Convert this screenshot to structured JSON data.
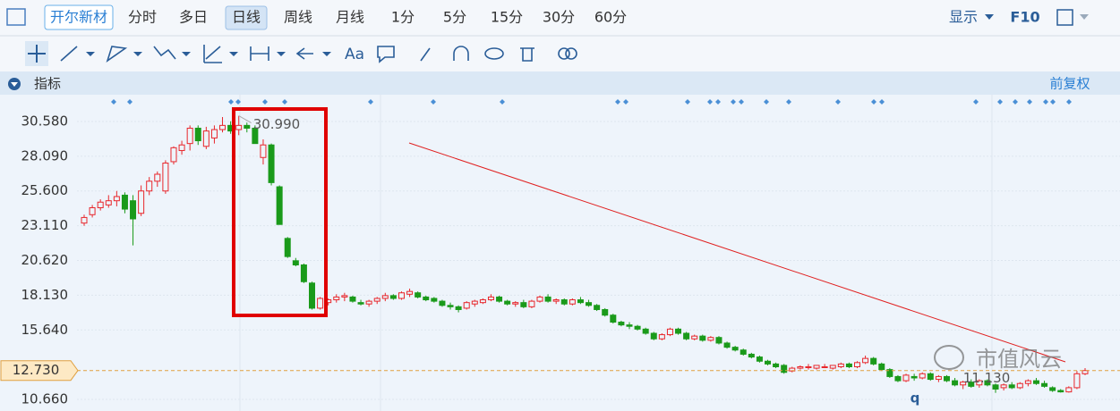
{
  "toolbar": {
    "stock": "开尔新材",
    "periods": [
      "分时",
      "多日",
      "日线",
      "周线",
      "月线",
      "1分",
      "5分",
      "15分",
      "30分",
      "60分"
    ],
    "display": "显示",
    "f10": "F10",
    "font_tool": "Aa"
  },
  "indicator_bar": {
    "title": "指标",
    "adjust": "前复权"
  },
  "chart_data": {
    "type": "candlestick",
    "ylim": [
      9.83,
      32.5
    ],
    "yticks": [
      {
        "value": 30.58,
        "label": "30.580"
      },
      {
        "value": 28.09,
        "label": "28.090"
      },
      {
        "value": 25.6,
        "label": "25.600"
      },
      {
        "value": 23.11,
        "label": "23.110"
      },
      {
        "value": 20.62,
        "label": "20.620"
      },
      {
        "value": 18.13,
        "label": "18.130"
      },
      {
        "value": 15.64,
        "label": "15.640"
      },
      {
        "value": 10.66,
        "label": "10.660"
      }
    ],
    "current_price": {
      "value": 12.73,
      "label": "12.730"
    },
    "high_label": {
      "value": 30.99,
      "label": "30.990"
    },
    "low_label": {
      "value": 11.13,
      "label": "11.130"
    },
    "marker_text": "q",
    "up_color": "#e8262b",
    "down_color": "#1a9a1a",
    "ohlc": [
      [
        23.3,
        23.9,
        23.1,
        23.7
      ],
      [
        23.9,
        24.6,
        23.7,
        24.4
      ],
      [
        24.4,
        25.0,
        24.2,
        24.8
      ],
      [
        24.6,
        25.3,
        24.4,
        24.9
      ],
      [
        24.9,
        25.6,
        24.5,
        25.2
      ],
      [
        25.3,
        25.5,
        24.0,
        24.3
      ],
      [
        24.9,
        25.3,
        21.7,
        23.6
      ],
      [
        24.0,
        26.0,
        23.8,
        25.6
      ],
      [
        25.6,
        26.6,
        25.3,
        26.3
      ],
      [
        26.3,
        27.0,
        25.9,
        26.8
      ],
      [
        25.6,
        27.8,
        25.4,
        27.6
      ],
      [
        27.7,
        28.8,
        27.5,
        28.7
      ],
      [
        28.5,
        29.2,
        28.2,
        28.9
      ],
      [
        29.0,
        30.3,
        28.5,
        30.1
      ],
      [
        30.1,
        30.3,
        28.9,
        29.2
      ],
      [
        28.8,
        30.2,
        28.6,
        29.9
      ],
      [
        29.4,
        30.3,
        29.0,
        30.0
      ],
      [
        30.0,
        30.9,
        29.8,
        30.3
      ],
      [
        30.3,
        30.6,
        29.7,
        29.9
      ],
      [
        30.0,
        30.99,
        29.6,
        30.3
      ],
      [
        30.3,
        30.5,
        29.8,
        30.1
      ],
      [
        30.1,
        30.3,
        29.0,
        29.0
      ],
      [
        28.0,
        29.3,
        27.5,
        28.9
      ],
      [
        28.9,
        29.0,
        26.0,
        26.2
      ],
      [
        25.9,
        26.0,
        23.2,
        23.2
      ],
      [
        22.2,
        22.3,
        20.8,
        20.9
      ],
      [
        20.6,
        20.8,
        20.2,
        20.3
      ],
      [
        20.3,
        20.4,
        19.0,
        19.1
      ],
      [
        19.0,
        19.1,
        17.1,
        17.2
      ],
      [
        17.2,
        18.0,
        17.1,
        17.9
      ],
      [
        17.6,
        17.9,
        17.4,
        17.8
      ],
      [
        17.8,
        18.2,
        17.6,
        18.0
      ],
      [
        18.0,
        18.3,
        17.7,
        18.1
      ],
      [
        18.0,
        18.1,
        17.6,
        17.7
      ],
      [
        17.6,
        17.8,
        17.4,
        17.5
      ],
      [
        17.5,
        17.8,
        17.3,
        17.7
      ],
      [
        17.7,
        18.0,
        17.5,
        17.9
      ],
      [
        17.9,
        18.3,
        17.7,
        18.1
      ],
      [
        18.1,
        18.2,
        17.8,
        17.9
      ],
      [
        17.9,
        18.4,
        17.8,
        18.3
      ],
      [
        18.2,
        18.6,
        18.0,
        18.4
      ],
      [
        18.3,
        18.4,
        17.9,
        18.0
      ],
      [
        18.0,
        18.1,
        17.7,
        17.8
      ],
      [
        17.9,
        18.0,
        17.6,
        17.7
      ],
      [
        17.7,
        17.8,
        17.3,
        17.4
      ],
      [
        17.4,
        17.6,
        17.1,
        17.3
      ],
      [
        17.3,
        17.4,
        16.9,
        17.1
      ],
      [
        17.2,
        17.7,
        17.1,
        17.6
      ],
      [
        17.5,
        17.8,
        17.3,
        17.7
      ],
      [
        17.6,
        17.9,
        17.5,
        17.8
      ],
      [
        17.8,
        18.2,
        17.7,
        18.0
      ],
      [
        18.0,
        18.1,
        17.6,
        17.7
      ],
      [
        17.7,
        17.8,
        17.4,
        17.5
      ],
      [
        17.5,
        17.7,
        17.3,
        17.6
      ],
      [
        17.6,
        17.8,
        17.2,
        17.3
      ],
      [
        17.3,
        17.8,
        17.2,
        17.7
      ],
      [
        17.7,
        18.1,
        17.6,
        18.0
      ],
      [
        18.0,
        18.2,
        17.6,
        17.7
      ],
      [
        17.7,
        17.9,
        17.5,
        17.8
      ],
      [
        17.8,
        17.9,
        17.4,
        17.5
      ],
      [
        17.5,
        17.9,
        17.4,
        17.8
      ],
      [
        17.8,
        18.0,
        17.5,
        17.6
      ],
      [
        17.6,
        17.8,
        17.3,
        17.4
      ],
      [
        17.4,
        17.5,
        17.0,
        17.1
      ],
      [
        17.1,
        17.2,
        16.6,
        16.7
      ],
      [
        16.7,
        16.8,
        16.1,
        16.2
      ],
      [
        16.2,
        16.3,
        15.9,
        16.0
      ],
      [
        16.0,
        16.2,
        15.7,
        15.9
      ],
      [
        15.9,
        16.0,
        15.6,
        15.7
      ],
      [
        15.7,
        15.8,
        15.3,
        15.4
      ],
      [
        15.4,
        15.5,
        14.9,
        15.0
      ],
      [
        15.0,
        15.4,
        14.9,
        15.3
      ],
      [
        15.3,
        15.8,
        15.2,
        15.7
      ],
      [
        15.7,
        15.8,
        15.3,
        15.4
      ],
      [
        15.4,
        15.5,
        14.9,
        15.0
      ],
      [
        15.0,
        15.3,
        14.9,
        15.2
      ],
      [
        15.2,
        15.3,
        14.8,
        14.9
      ],
      [
        14.9,
        15.2,
        14.8,
        15.1
      ],
      [
        15.1,
        15.2,
        14.6,
        14.7
      ],
      [
        14.7,
        14.8,
        14.3,
        14.4
      ],
      [
        14.4,
        14.5,
        14.1,
        14.2
      ],
      [
        14.2,
        14.3,
        13.8,
        13.9
      ],
      [
        13.9,
        14.0,
        13.6,
        13.7
      ],
      [
        13.7,
        13.8,
        13.3,
        13.4
      ],
      [
        13.4,
        13.5,
        13.1,
        13.2
      ],
      [
        13.2,
        13.3,
        12.9,
        13.0
      ],
      [
        13.1,
        13.2,
        12.5,
        12.6
      ],
      [
        12.7,
        13.0,
        12.6,
        12.9
      ],
      [
        12.9,
        13.1,
        12.8,
        13.0
      ],
      [
        13.0,
        13.2,
        12.8,
        13.0
      ],
      [
        12.9,
        13.1,
        12.8,
        13.1
      ],
      [
        13.0,
        13.2,
        12.9,
        13.0
      ],
      [
        12.9,
        13.1,
        12.8,
        13.1
      ],
      [
        13.0,
        13.3,
        12.9,
        13.2
      ],
      [
        13.2,
        13.3,
        12.9,
        13.0
      ],
      [
        13.0,
        13.4,
        12.9,
        13.3
      ],
      [
        13.3,
        13.8,
        13.2,
        13.6
      ],
      [
        13.6,
        13.7,
        13.1,
        13.2
      ],
      [
        13.2,
        13.3,
        12.7,
        12.8
      ],
      [
        12.8,
        12.9,
        12.2,
        12.3
      ],
      [
        12.3,
        12.4,
        11.9,
        12.0
      ],
      [
        12.0,
        12.5,
        11.9,
        12.4
      ],
      [
        12.3,
        12.5,
        12.0,
        12.2
      ],
      [
        12.2,
        12.6,
        12.1,
        12.5
      ],
      [
        12.5,
        12.6,
        12.0,
        12.1
      ],
      [
        12.1,
        12.4,
        11.9,
        12.3
      ],
      [
        12.3,
        12.4,
        11.9,
        12.0
      ],
      [
        12.0,
        12.2,
        11.6,
        11.7
      ],
      [
        11.7,
        12.0,
        11.4,
        11.9
      ],
      [
        11.9,
        12.1,
        11.5,
        11.6
      ],
      [
        11.7,
        12.1,
        11.5,
        12.0
      ],
      [
        12.0,
        12.1,
        11.6,
        11.7
      ],
      [
        11.7,
        11.8,
        11.13,
        11.4
      ],
      [
        11.5,
        11.8,
        11.3,
        11.7
      ],
      [
        11.7,
        11.9,
        11.4,
        11.5
      ],
      [
        11.5,
        11.9,
        11.4,
        11.8
      ],
      [
        11.8,
        12.1,
        11.6,
        12.0
      ],
      [
        12.0,
        12.2,
        11.7,
        11.8
      ],
      [
        11.8,
        12.0,
        11.5,
        11.6
      ],
      [
        11.5,
        11.6,
        11.2,
        11.3
      ],
      [
        11.3,
        11.4,
        11.15,
        11.2
      ],
      [
        11.2,
        11.6,
        11.15,
        11.5
      ],
      [
        11.5,
        12.7,
        11.4,
        12.5
      ],
      [
        12.5,
        12.9,
        12.4,
        12.73
      ]
    ]
  }
}
